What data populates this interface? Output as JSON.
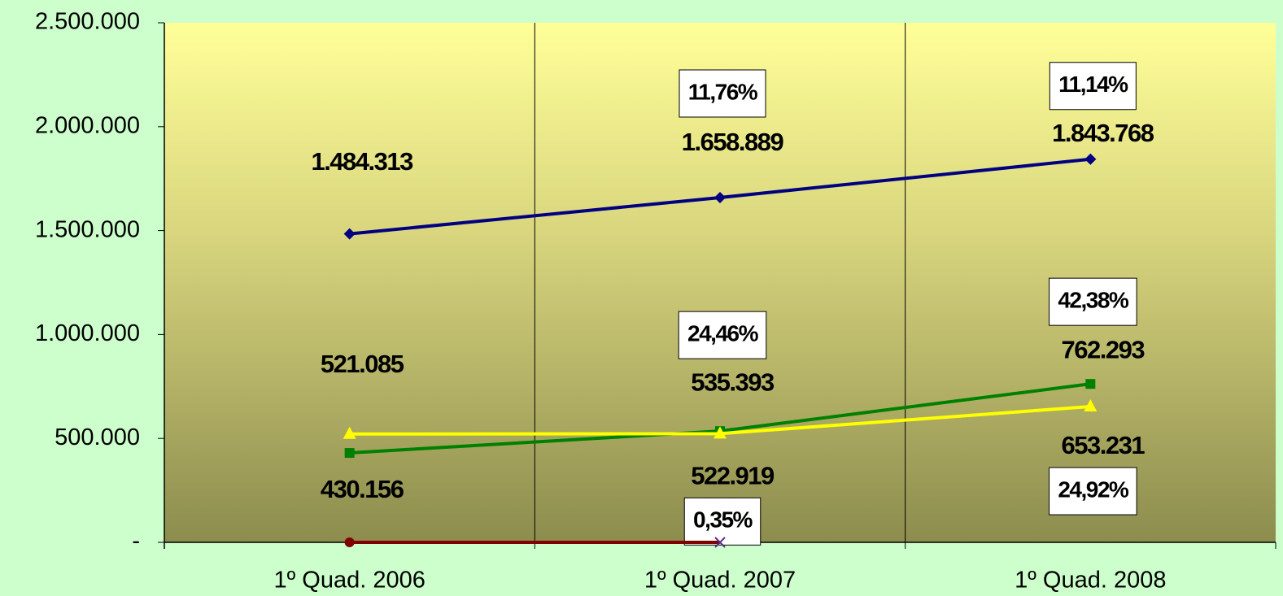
{
  "chart_data": {
    "type": "line",
    "categories": [
      "1º Quad. 2006",
      "1º Quad. 2007",
      "1º Quad. 2008"
    ],
    "ylim": [
      0,
      2500000
    ],
    "yticks": [
      {
        "value": 0,
        "label": "-"
      },
      {
        "value": 500000,
        "label": "500.000"
      },
      {
        "value": 1000000,
        "label": "1.000.000"
      },
      {
        "value": 1500000,
        "label": "1.500.000"
      },
      {
        "value": 2000000,
        "label": "2.000.000"
      },
      {
        "value": 2500000,
        "label": "2.500.000"
      }
    ],
    "series": [
      {
        "color": "#000080",
        "marker": "diamond",
        "values": [
          1484313,
          1658889,
          1843768
        ],
        "value_labels": [
          "1.484.313",
          "1.658.889",
          "1.843.768"
        ],
        "change_labels": [
          null,
          "11,76%",
          "11,14%"
        ]
      },
      {
        "color": "#008000",
        "marker": "square",
        "values": [
          430156,
          535393,
          762293
        ],
        "value_labels": [
          "430.156",
          "535.393",
          "762.293"
        ],
        "change_labels": [
          null,
          "24,46%",
          "42,38%"
        ]
      },
      {
        "color": "#ffff00",
        "marker": "triangle",
        "values": [
          521085,
          522919,
          653231
        ],
        "value_labels": [
          "521.085",
          "522.919",
          "653.231"
        ],
        "change_labels": [
          null,
          "0,35%",
          "24,92%"
        ]
      },
      {
        "color": "#800000",
        "marker": "circle",
        "values": [
          0,
          0,
          null
        ]
      }
    ]
  }
}
